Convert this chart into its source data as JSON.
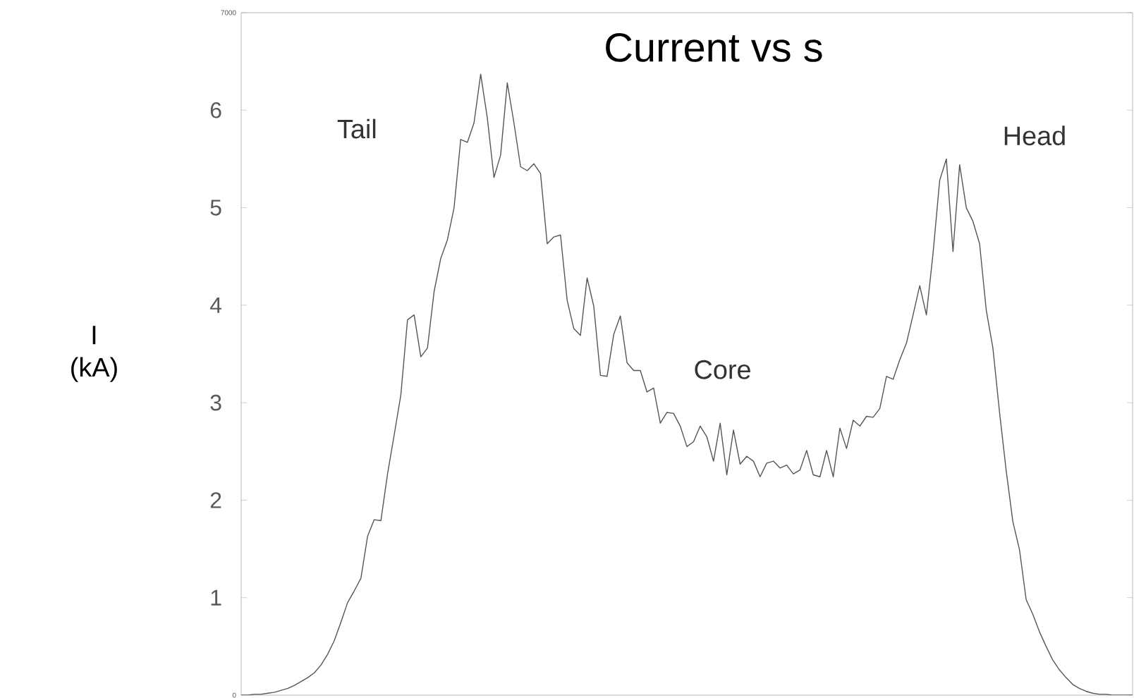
{
  "chart_data": {
    "type": "line",
    "title": "Current vs s",
    "y2label": "I (kA)",
    "annotations": [
      "Tail",
      "Core",
      "Head"
    ],
    "categories": [
      null,
      null,
      null,
      null,
      null,
      null,
      null,
      null,
      null,
      null,
      null,
      null,
      null,
      null,
      null,
      null,
      null,
      null,
      null,
      null,
      null,
      null,
      null,
      null,
      null,
      null,
      null,
      null,
      null,
      null,
      null,
      null,
      null,
      null,
      null,
      null,
      null,
      null,
      null,
      null,
      null,
      null,
      null,
      null,
      null,
      null,
      null,
      null,
      null,
      null,
      null,
      null,
      null,
      null,
      null,
      null,
      null,
      null,
      null,
      null,
      null,
      null,
      null,
      null,
      null,
      null,
      null,
      null,
      null,
      null,
      null,
      null,
      null,
      null,
      null,
      null,
      null,
      null,
      null,
      null,
      null,
      null,
      null,
      null,
      null,
      null,
      null,
      null,
      null,
      null,
      null,
      null,
      null,
      null,
      null,
      null,
      null,
      null,
      null,
      null,
      null,
      null,
      null,
      null,
      null,
      null,
      null,
      null,
      null,
      null,
      null,
      null,
      null,
      null,
      null,
      null,
      null,
      null,
      null,
      null,
      null,
      null,
      null,
      null,
      null,
      null,
      null,
      null,
      null,
      null,
      null,
      null,
      null,
      null,
      null
    ],
    "series": [
      {
        "color": "#555555",
        "values": [
          0,
          0,
          10,
          10,
          20,
          30,
          50,
          70,
          100,
          140,
          180,
          230,
          310,
          420,
          560,
          750,
          950,
          1070,
          1200,
          1630,
          1800,
          1790,
          2270,
          2670,
          3080,
          3850,
          3900,
          3470,
          3560,
          4140,
          4480,
          4670,
          5000,
          5700,
          5670,
          5870,
          6370,
          5920,
          5310,
          5540,
          6280,
          5870,
          5420,
          5380,
          5450,
          5350,
          4630,
          4700,
          4720,
          4050,
          3760,
          3690,
          4280,
          3990,
          3280,
          3270,
          3700,
          3890,
          3410,
          3330,
          3330,
          3110,
          3150,
          2790,
          2900,
          2890,
          2760,
          2550,
          2600,
          2760,
          2650,
          2400,
          2790,
          2260,
          2720,
          2370,
          2450,
          2400,
          2240,
          2380,
          2400,
          2330,
          2360,
          2270,
          2310,
          2510,
          2260,
          2240,
          2510,
          2240,
          2740,
          2530,
          2820,
          2760,
          2860,
          2850,
          2940,
          3270,
          3240,
          3440,
          3610,
          3900,
          4200,
          3900,
          4530,
          5280,
          5500,
          4550,
          5440,
          5000,
          4860,
          4630,
          3950,
          3560,
          2900,
          2300,
          1780,
          1490,
          980,
          830,
          650,
          500,
          360,
          260,
          180,
          110,
          70,
          40,
          20,
          10,
          10,
          0,
          0,
          0,
          0
        ]
      }
    ],
    "ylim": [
      0,
      7000
    ],
    "yticks": [
      0,
      7000
    ],
    "y2lim": [
      0,
      7
    ],
    "y2ticks": [
      1,
      2,
      3,
      4,
      5,
      6
    ],
    "grid": false,
    "marker": "none",
    "line_style": "solid"
  }
}
